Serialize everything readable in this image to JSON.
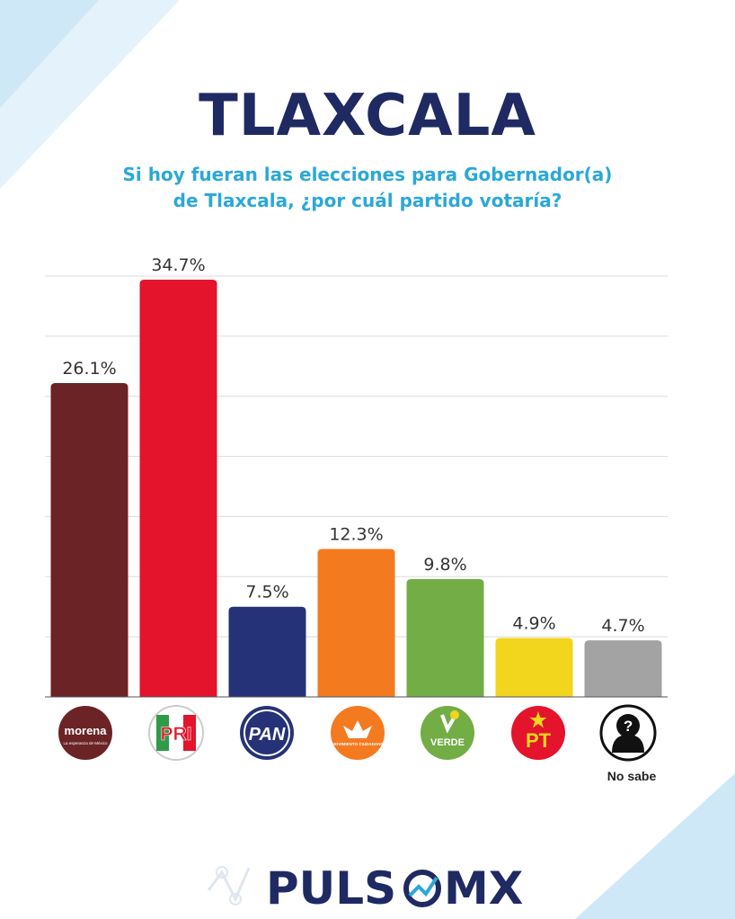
{
  "header": {
    "title": "TLAXCALA",
    "subtitle_line1": "Si hoy fueran las elecciones para Gobernador(a)",
    "subtitle_line2": "de Tlaxcala, ¿por cuál partido votaría?"
  },
  "chart_data": {
    "type": "bar",
    "title": "TLAXCALA",
    "subtitle": "Si hoy fueran las elecciones para Gobernador(a) de Tlaxcala, ¿por cuál partido votaría?",
    "categories": [
      "morena",
      "PRI",
      "PAN",
      "MOVIMIENTO CIUDADANO",
      "VERDE",
      "PT",
      "No sabe"
    ],
    "values": [
      26.1,
      34.7,
      7.5,
      12.3,
      9.8,
      4.9,
      4.7
    ],
    "data_labels": [
      "26.1%",
      "34.7%",
      "7.5%",
      "12.3%",
      "9.8%",
      "4.9%",
      "4.7%"
    ],
    "colors": [
      "#6b2326",
      "#e3142b",
      "#263278",
      "#f47a1f",
      "#72ad45",
      "#f2d51d",
      "#a3a3a3"
    ],
    "ylim": [
      0,
      35
    ],
    "grid": true,
    "xlabel": "",
    "ylabel": ""
  },
  "logos": {
    "morena": {
      "text": "morena",
      "tagline": "La esperanza de México",
      "color": "#6b2326"
    },
    "pri": {
      "text": "PRI",
      "color": "#e3142b"
    },
    "pan": {
      "text": "PAN",
      "color": "#263278"
    },
    "mc": {
      "text": "MOVIMIENTO CIUDADANO",
      "color": "#f47a1f"
    },
    "verde": {
      "text": "VERDE",
      "color": "#72ad45"
    },
    "pt": {
      "text": "PT",
      "color": "#e3142b"
    },
    "nosabe": {
      "text": "No sabe",
      "symbol": "?",
      "color": "#111111"
    }
  },
  "brand": {
    "left": "PULS",
    "right": "MX"
  }
}
